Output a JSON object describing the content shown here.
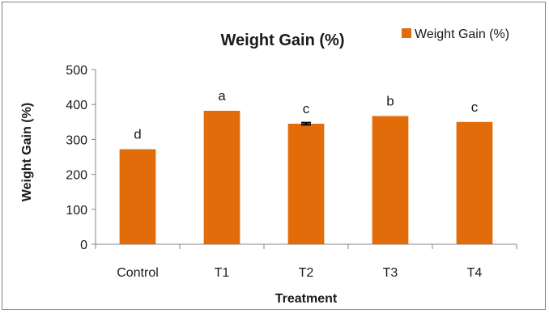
{
  "chart_data": {
    "type": "bar",
    "title": "Weight Gain (%)",
    "xlabel": "Treatment",
    "ylabel": "Weight Gain (%)",
    "categories": [
      "Control",
      "T1",
      "T2",
      "T3",
      "T4"
    ],
    "series": [
      {
        "name": "Weight Gain (%)",
        "values": [
          272,
          382,
          345,
          367,
          350
        ]
      }
    ],
    "error_bars": [
      null,
      null,
      3,
      null,
      null
    ],
    "significance_labels": [
      "d",
      "a",
      "c",
      "b",
      "c"
    ],
    "ylim": [
      0,
      500
    ],
    "yticks": [
      0,
      100,
      200,
      300,
      400,
      500
    ],
    "grid": false,
    "legend_position": "top-right",
    "colors": {
      "bar": "#E36C0A",
      "axis": "#868686",
      "error": "#000000"
    }
  }
}
